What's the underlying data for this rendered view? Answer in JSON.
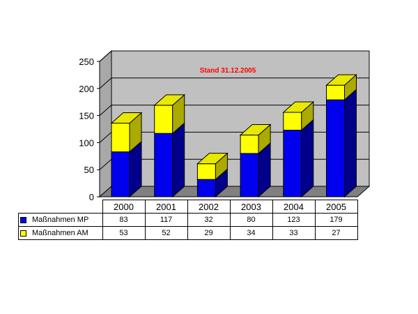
{
  "chart_data": {
    "type": "bar",
    "stacked": true,
    "three_d": true,
    "categories": [
      "2000",
      "2001",
      "2002",
      "2003",
      "2004",
      "2005"
    ],
    "series": [
      {
        "name": "Maßnahmen MP",
        "values": [
          83,
          117,
          32,
          80,
          123,
          179
        ],
        "color": "#0000ee",
        "side_color": "#00008b",
        "top_color": "#1e1ef0"
      },
      {
        "name": "Maßnahmen AM",
        "values": [
          53,
          52,
          29,
          34,
          33,
          27
        ],
        "color": "#ffff00",
        "side_color": "#aaaa00",
        "top_color": "#e8e800"
      }
    ],
    "annotation": "Stand 31.12.2005",
    "ylim": [
      0,
      250
    ],
    "yticks": [
      "0",
      "50",
      "100",
      "150",
      "200",
      "250"
    ],
    "grid": true,
    "wall_color": "#c0c0c0",
    "floor_color": "#808080",
    "legend": "data-table-below"
  }
}
